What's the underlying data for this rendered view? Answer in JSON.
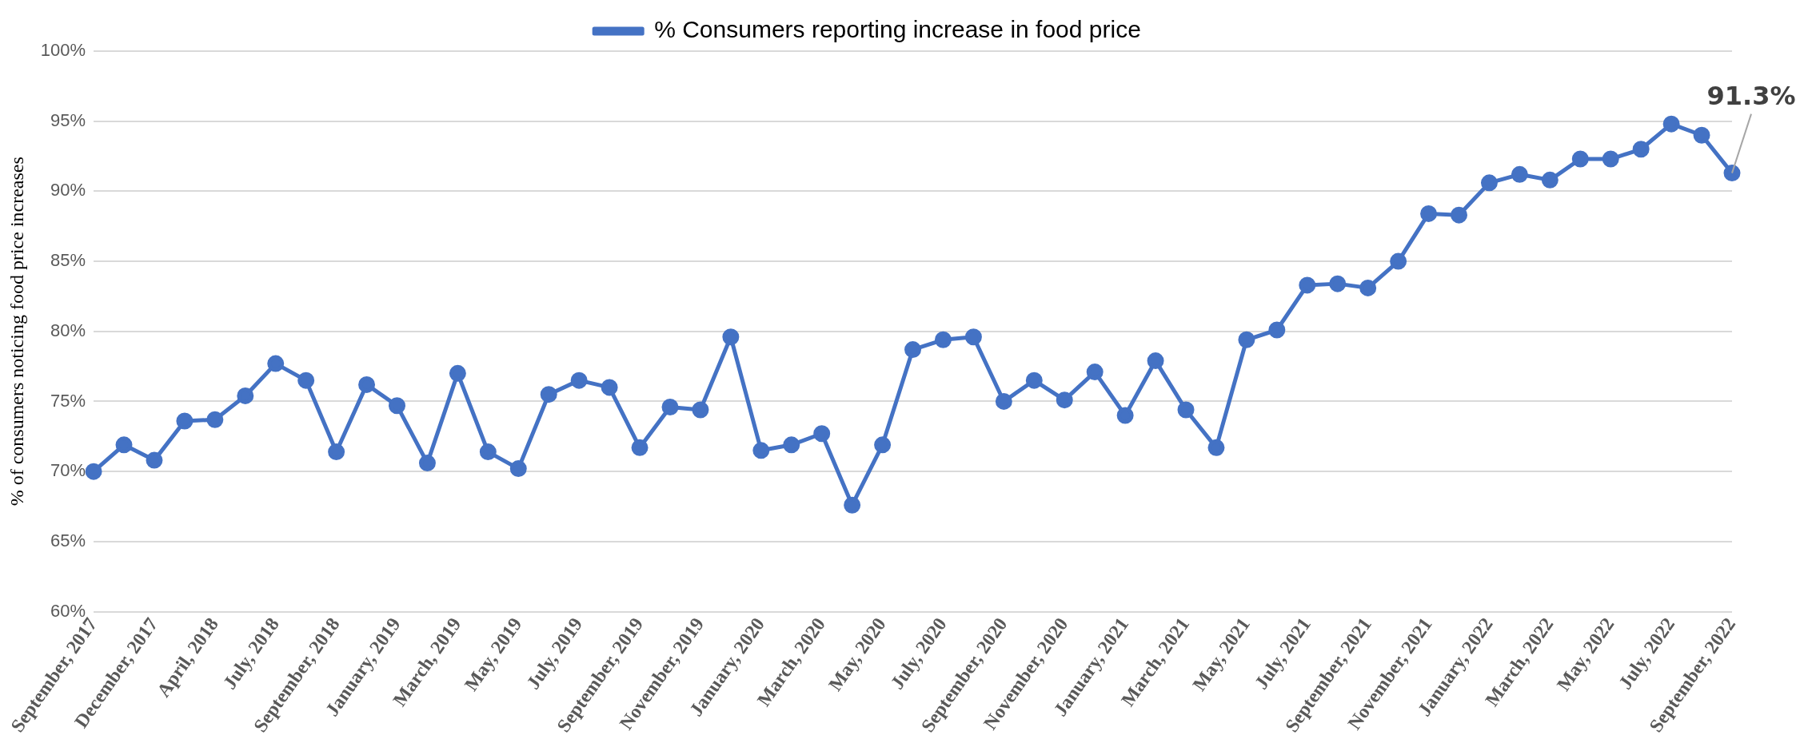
{
  "chart_data": {
    "type": "line",
    "ylabel": "% of consumers noticing food price increases",
    "categories": [
      "September, 2017",
      null,
      "December, 2017",
      null,
      "April, 2018",
      null,
      "July, 2018",
      null,
      "September, 2018",
      null,
      "January, 2019",
      null,
      "March, 2019",
      null,
      "May, 2019",
      null,
      "July, 2019",
      null,
      "September, 2019",
      null,
      "November, 2019",
      null,
      "January, 2020",
      null,
      "March, 2020",
      null,
      "May, 2020",
      null,
      "July, 2020",
      null,
      "September, 2020",
      null,
      "November, 2020",
      null,
      "January, 2021",
      null,
      "March, 2021",
      null,
      "May, 2021",
      null,
      "July, 2021",
      null,
      "September, 2021",
      null,
      "November, 2021",
      null,
      "January, 2022",
      null,
      "March, 2022",
      null,
      "May, 2022",
      null,
      "July, 2022",
      null,
      "September, 2022"
    ],
    "series": [
      {
        "name": "% Consumers reporting increase in food price",
        "color": "#4472c4",
        "values": [
          70.0,
          71.9,
          70.8,
          73.6,
          73.7,
          75.4,
          77.7,
          76.5,
          71.4,
          76.2,
          74.7,
          70.6,
          77.0,
          71.4,
          70.2,
          75.5,
          76.5,
          76.0,
          71.7,
          74.6,
          74.4,
          79.6,
          71.5,
          71.9,
          72.7,
          67.6,
          71.9,
          78.7,
          79.4,
          79.6,
          75.0,
          76.5,
          75.1,
          77.1,
          74.0,
          77.9,
          74.4,
          71.7,
          79.4,
          80.1,
          83.3,
          83.4,
          83.1,
          85.0,
          88.4,
          88.3,
          90.6,
          91.2,
          90.8,
          92.3,
          92.3,
          93.0,
          94.8,
          94.0,
          91.3
        ]
      }
    ],
    "ylim": [
      60,
      100
    ],
    "yticks": [
      {
        "value": 60,
        "label": "60%"
      },
      {
        "value": 65,
        "label": "65%"
      },
      {
        "value": 70,
        "label": "70%"
      },
      {
        "value": 75,
        "label": "75%"
      },
      {
        "value": 80,
        "label": "80%"
      },
      {
        "value": 85,
        "label": "85%"
      },
      {
        "value": 90,
        "label": "90%"
      },
      {
        "value": 95,
        "label": "95%"
      },
      {
        "value": 100,
        "label": "100%"
      }
    ],
    "annotations": [
      {
        "text": "91.3%",
        "x": "September, 2022",
        "y": 91.3
      }
    ],
    "grid": "y",
    "legend": "top",
    "marker": "circle",
    "line_style": "solid"
  }
}
